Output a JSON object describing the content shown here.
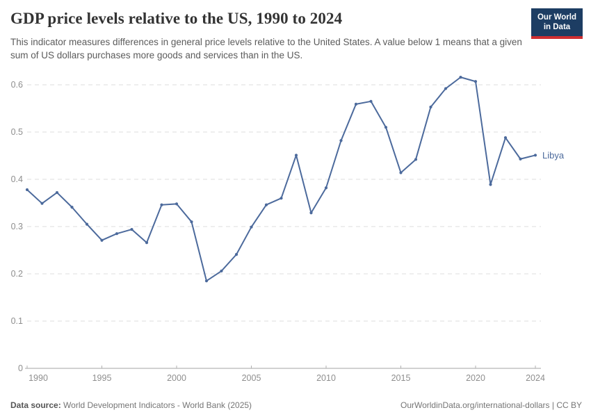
{
  "header": {
    "title": "GDP price levels relative to the US, 1990 to 2024",
    "subtitle": "This indicator measures differences in general price levels relative to the United States. A value below 1 means that a given sum of US dollars purchases more goods and services than in the US.",
    "logo": {
      "line1": "Our World",
      "line2": "in Data",
      "bg_color": "#1d3d63",
      "stripe_color": "#cf2e31"
    }
  },
  "chart_data": {
    "type": "line",
    "title": "GDP price levels relative to the US, 1990 to 2024",
    "xlabel": "",
    "ylabel": "",
    "xlim": [
      1990,
      2024
    ],
    "ylim": [
      0,
      0.64
    ],
    "x_ticks": [
      1990,
      1995,
      2000,
      2005,
      2010,
      2015,
      2020,
      2024
    ],
    "y_ticks": [
      0,
      0.1,
      0.2,
      0.3,
      0.4,
      0.5,
      0.6
    ],
    "grid": "horizontal-dashed",
    "legend": "end-of-line-label",
    "series": [
      {
        "name": "Libya",
        "color": "#4C6A9C",
        "x": [
          1990,
          1991,
          1992,
          1993,
          1994,
          1995,
          1996,
          1997,
          1998,
          1999,
          2000,
          2001,
          2002,
          2003,
          2004,
          2005,
          2006,
          2007,
          2008,
          2009,
          2010,
          2011,
          2012,
          2013,
          2014,
          2015,
          2016,
          2017,
          2018,
          2019,
          2020,
          2021,
          2022,
          2023,
          2024
        ],
        "values": [
          0.378,
          0.349,
          0.372,
          0.341,
          0.305,
          0.271,
          0.285,
          0.294,
          0.266,
          0.346,
          0.348,
          0.31,
          0.185,
          0.206,
          0.241,
          0.299,
          0.346,
          0.36,
          0.451,
          0.329,
          0.382,
          0.482,
          0.559,
          0.565,
          0.51,
          0.414,
          0.442,
          0.553,
          0.592,
          0.616,
          0.607,
          0.389,
          0.488,
          0.443,
          0.451
        ]
      }
    ]
  },
  "footer": {
    "datasource_label": "Data source:",
    "datasource_value": "World Development Indicators - World Bank (2025)",
    "link": "OurWorldinData.org/international-dollars | CC BY"
  }
}
